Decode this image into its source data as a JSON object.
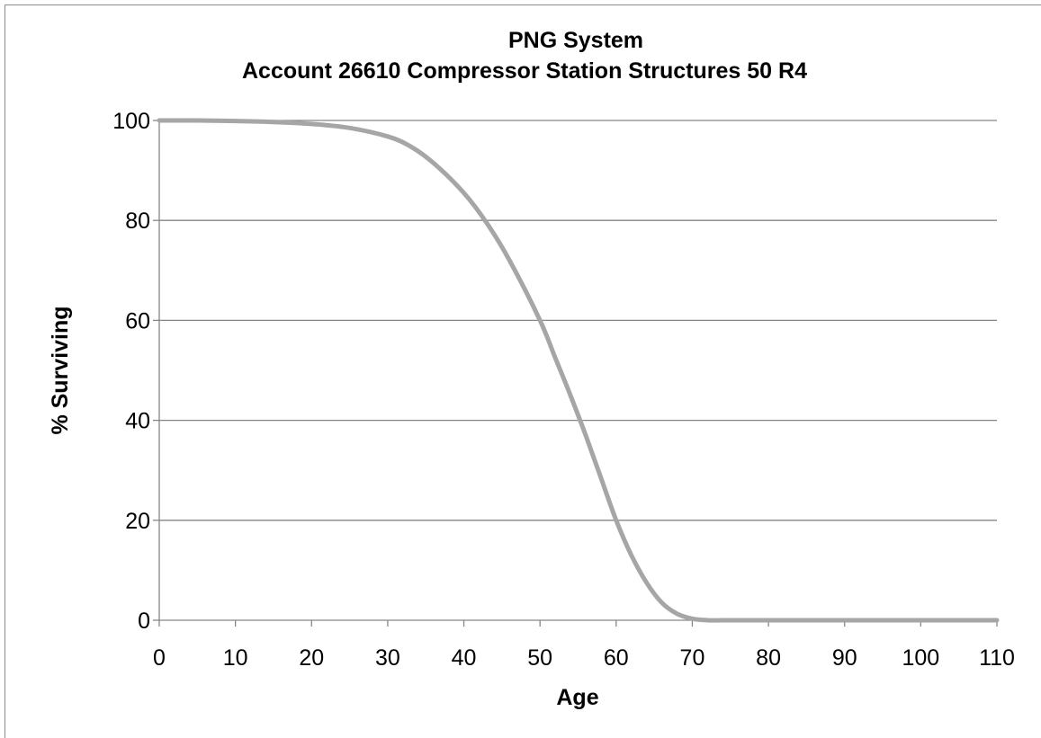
{
  "chart_data": {
    "type": "line",
    "title": "PNG System",
    "subtitle": "Account 26610 Compressor Station Structures 50 R4",
    "xlabel": "Age",
    "ylabel": "% Surviving",
    "xlim": [
      0,
      110
    ],
    "ylim": [
      0,
      100
    ],
    "xticks": [
      "0",
      "10",
      "20",
      "30",
      "40",
      "50",
      "60",
      "70",
      "80",
      "90",
      "100",
      "110"
    ],
    "yticks": [
      "0",
      "20",
      "40",
      "60",
      "80",
      "100"
    ],
    "grid": "horizontal",
    "legend": "none",
    "series": [
      {
        "color": "#a6a6a6",
        "x": [
          0,
          5,
          10,
          15,
          20,
          25,
          30,
          33,
          36,
          40,
          43,
          46,
          50,
          52,
          54,
          56,
          58,
          60,
          62,
          64,
          66,
          68,
          70,
          72,
          74,
          76,
          80,
          90,
          100,
          110
        ],
        "y": [
          100,
          100,
          99.9,
          99.7,
          99.3,
          98.5,
          96.8,
          94.8,
          91.5,
          85.5,
          79.5,
          72,
          60,
          52.5,
          45,
          37,
          28.5,
          20,
          13,
          7.5,
          3.5,
          1.3,
          0.3,
          0,
          0,
          0,
          0,
          0,
          0,
          0
        ]
      }
    ]
  }
}
